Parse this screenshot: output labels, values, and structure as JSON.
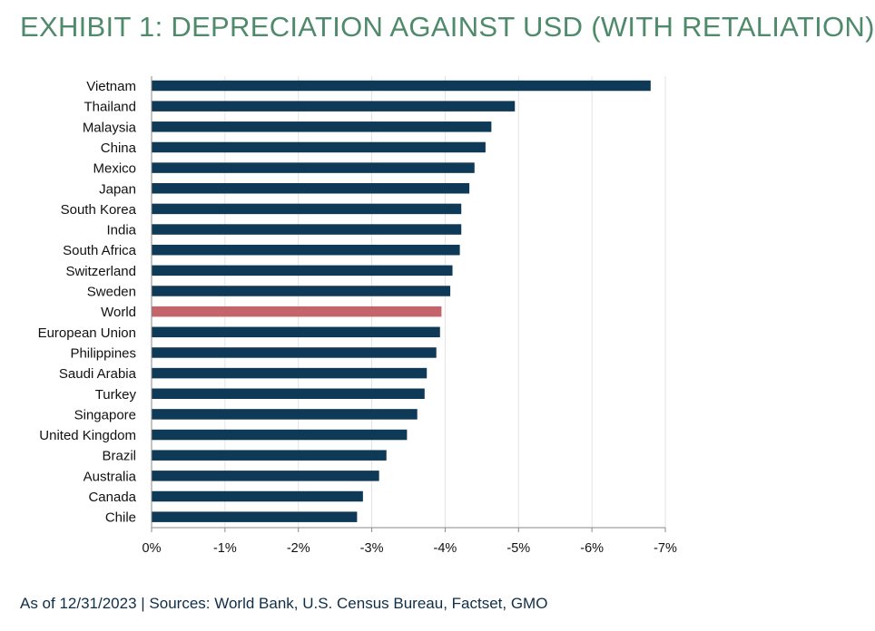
{
  "title": "EXHIBIT 1: DEPRECIATION AGAINST USD (WITH RETALIATION)",
  "footer": "As of 12/31/2023 | Sources: World Bank, U.S. Census Bureau, Factset, GMO",
  "colors": {
    "bar": "#0f3a57",
    "highlight": "#c4646b",
    "grid": "#e3e3e3",
    "axis": "#8a8a8a",
    "title": "#4f8a6b",
    "footer": "#0f2e47"
  },
  "chart_data": {
    "type": "bar",
    "orientation": "horizontal",
    "categories": [
      "Vietnam",
      "Thailand",
      "Malaysia",
      "China",
      "Mexico",
      "Japan",
      "South Korea",
      "India",
      "South Africa",
      "Switzerland",
      "Sweden",
      "World",
      "European Union",
      "Philippines",
      "Saudi Arabia",
      "Turkey",
      "Singapore",
      "United Kingdom",
      "Brazil",
      "Australia",
      "Canada",
      "Chile"
    ],
    "values": [
      -6.8,
      -4.95,
      -4.63,
      -4.55,
      -4.4,
      -4.33,
      -4.22,
      -4.22,
      -4.2,
      -4.1,
      -4.07,
      -3.95,
      -3.93,
      -3.88,
      -3.75,
      -3.72,
      -3.62,
      -3.48,
      -3.2,
      -3.1,
      -2.88,
      -2.8
    ],
    "highlight_category": "World",
    "xlim": [
      0,
      -7
    ],
    "xticks": [
      0,
      -1,
      -2,
      -3,
      -4,
      -5,
      -6,
      -7
    ],
    "xtick_labels": [
      "0%",
      "-1%",
      "-2%",
      "-3%",
      "-4%",
      "-5%",
      "-6%",
      "-7%"
    ],
    "grid": "vertical"
  }
}
